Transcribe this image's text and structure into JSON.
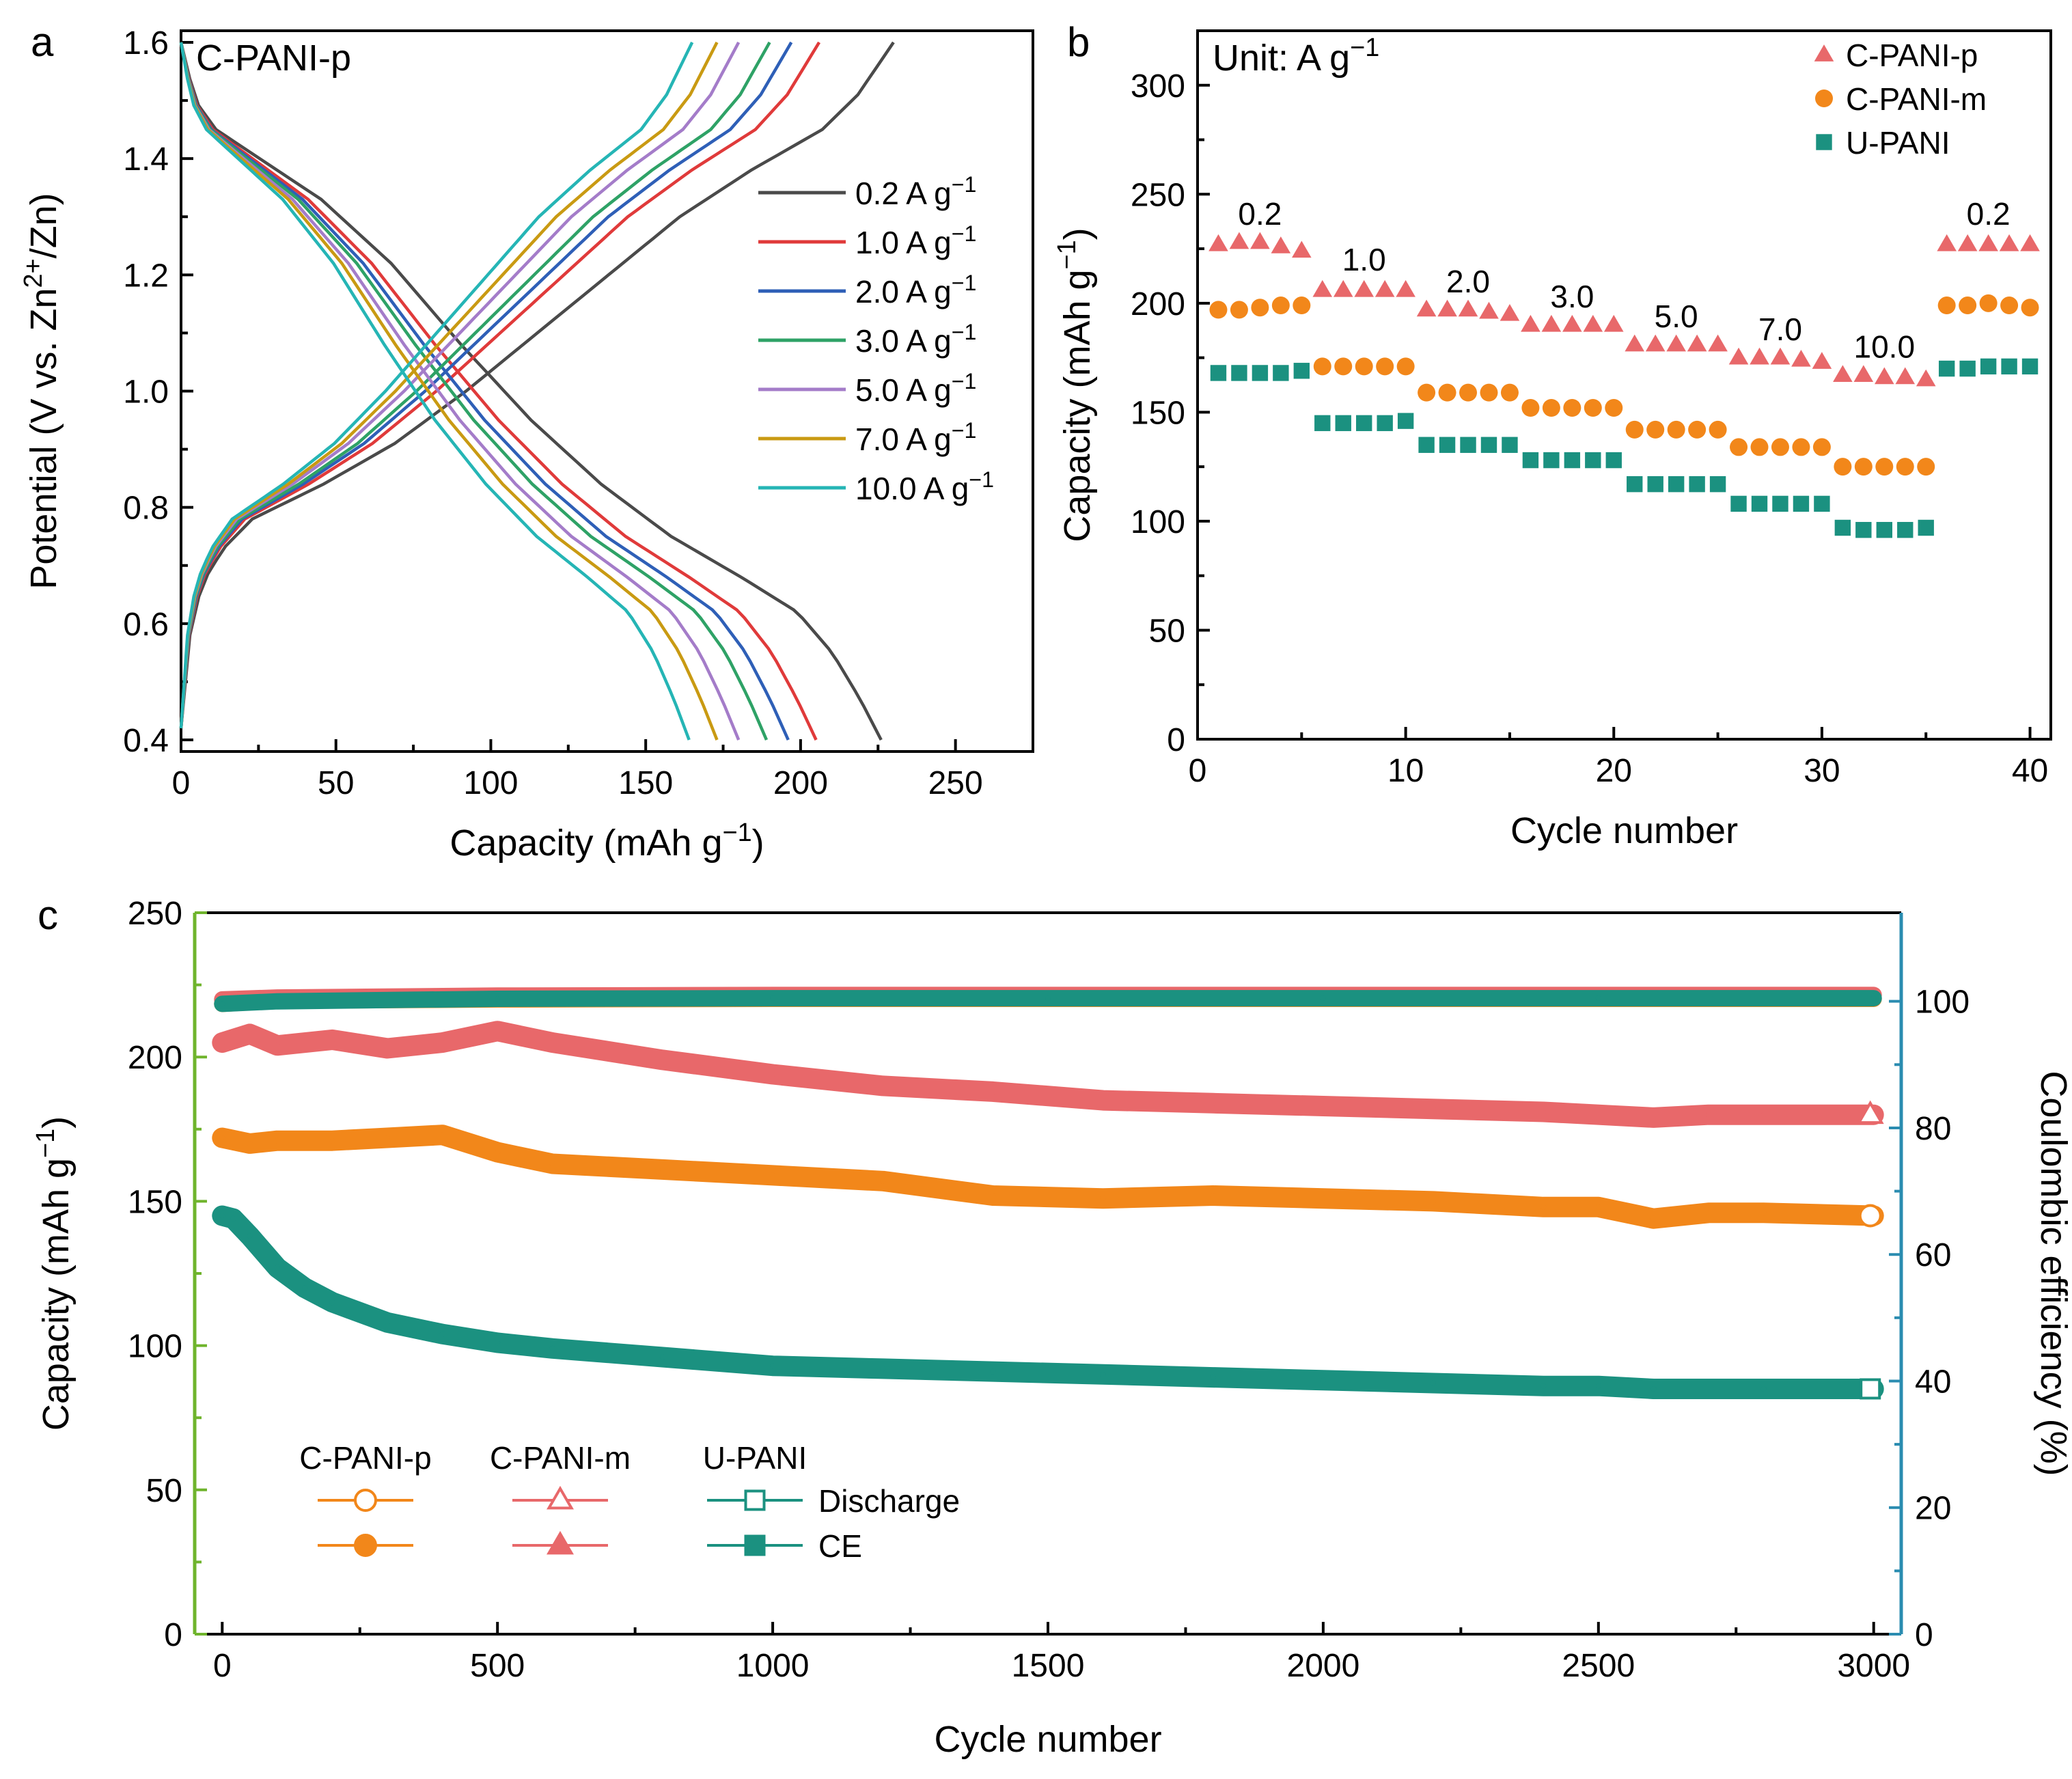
{
  "colors": {
    "a": [
      "#4a4a4a",
      "#e03a3a",
      "#2e5fb7",
      "#2ea266",
      "#a47cc9",
      "#c99a12",
      "#25b5b5"
    ],
    "p": "#e8686a",
    "m": "#f2871a",
    "u": "#1b9180",
    "green": "#6fb42c",
    "blue": "#2a8cb0"
  },
  "chart_data": [
    {
      "id": "a",
      "panel_label": "a",
      "type": "line",
      "title": "C-PANI-p",
      "xlabel": "Capacity (mAh g",
      "xlabel_sup": "−1",
      "xlabel_end": ")",
      "ylabel": "Potential (V vs. Zn",
      "ylabel_sup": "2+",
      "ylabel_end": "/Zn)",
      "xlim": [
        0,
        275
      ],
      "ylim": [
        0.38,
        1.62
      ],
      "xticks": [
        0,
        50,
        100,
        150,
        200,
        250
      ],
      "xtick_labels": [
        "0",
        "50",
        "100",
        "150",
        "200",
        "250"
      ],
      "yticks": [
        0.4,
        0.6,
        0.8,
        1.0,
        1.2,
        1.4,
        1.6
      ],
      "ytick_labels": [
        "0.4",
        "0.6",
        "0.8",
        "1.0",
        "1.2",
        "1.4",
        "1.6"
      ],
      "legend_position": "center-right",
      "legend_unit": "A g",
      "legend_unit_sup": "−1",
      "series": [
        {
          "name": "0.2",
          "discharge_capacity": 226,
          "charge_capacity": 230
        },
        {
          "name": "1.0",
          "discharge_capacity": 205,
          "charge_capacity": 206
        },
        {
          "name": "2.0",
          "discharge_capacity": 196,
          "charge_capacity": 197
        },
        {
          "name": "3.0",
          "discharge_capacity": 189,
          "charge_capacity": 190
        },
        {
          "name": "5.0",
          "discharge_capacity": 180,
          "charge_capacity": 180
        },
        {
          "name": "7.0",
          "discharge_capacity": 173,
          "charge_capacity": 173
        },
        {
          "name": "10.0",
          "discharge_capacity": 164,
          "charge_capacity": 165
        }
      ],
      "discharge_shape": {
        "fraction": [
          0,
          0.02,
          0.05,
          0.1,
          0.2,
          0.3,
          0.4,
          0.5,
          0.6,
          0.7,
          0.8,
          0.88,
          0.93,
          0.97,
          1.0
        ],
        "voltage": [
          1.6,
          1.5,
          1.45,
          1.41,
          1.33,
          1.22,
          1.08,
          0.95,
          0.84,
          0.75,
          0.68,
          0.62,
          0.55,
          0.47,
          0.4
        ]
      },
      "charge_shape": {
        "fraction": [
          0,
          0.005,
          0.015,
          0.03,
          0.06,
          0.1,
          0.2,
          0.3,
          0.4,
          0.5,
          0.6,
          0.7,
          0.8,
          0.9,
          0.95,
          1.0
        ],
        "voltage": [
          0.42,
          0.52,
          0.6,
          0.67,
          0.73,
          0.78,
          0.84,
          0.91,
          1.0,
          1.1,
          1.2,
          1.3,
          1.38,
          1.45,
          1.51,
          1.6
        ]
      }
    },
    {
      "id": "b",
      "panel_label": "b",
      "type": "scatter",
      "unit_note": "Unit: A g",
      "unit_note_sup": "−1",
      "xlabel": "Cycle number",
      "ylabel": "Capacity (mAh g",
      "ylabel_sup": "−1",
      "ylabel_end": ")",
      "xlim": [
        0,
        41
      ],
      "ylim": [
        0,
        325
      ],
      "xticks": [
        0,
        10,
        20,
        30,
        40
      ],
      "xtick_labels": [
        "0",
        "10",
        "20",
        "30",
        "40"
      ],
      "yticks": [
        0,
        50,
        100,
        150,
        200,
        250,
        300
      ],
      "ytick_labels": [
        "0",
        "50",
        "100",
        "150",
        "200",
        "250",
        "300"
      ],
      "legend_position": "top-right",
      "rate_labels": [
        {
          "label": "0.2",
          "x": 3,
          "y": 236
        },
        {
          "label": "1.0",
          "x": 8,
          "y": 215
        },
        {
          "label": "2.0",
          "x": 13,
          "y": 205
        },
        {
          "label": "3.0",
          "x": 18,
          "y": 198
        },
        {
          "label": "5.0",
          "x": 23,
          "y": 189
        },
        {
          "label": "7.0",
          "x": 28,
          "y": 183
        },
        {
          "label": "10.0",
          "x": 33,
          "y": 175
        },
        {
          "label": "0.2",
          "x": 38,
          "y": 236
        }
      ],
      "x": [
        1,
        2,
        3,
        4,
        5,
        6,
        7,
        8,
        9,
        10,
        11,
        12,
        13,
        14,
        15,
        16,
        17,
        18,
        19,
        20,
        21,
        22,
        23,
        24,
        25,
        26,
        27,
        28,
        29,
        30,
        31,
        32,
        33,
        34,
        35,
        36,
        37,
        38,
        39,
        40
      ],
      "series": [
        {
          "name": "C-PANI-p",
          "marker": "triangle",
          "values": [
            227,
            228,
            228,
            226,
            224,
            206,
            206,
            206,
            206,
            206,
            197,
            197,
            197,
            196,
            195,
            190,
            190,
            190,
            190,
            190,
            181,
            181,
            181,
            181,
            181,
            175,
            175,
            175,
            174,
            173,
            167,
            167,
            166,
            166,
            165,
            227,
            227,
            227,
            227,
            227
          ]
        },
        {
          "name": "C-PANI-m",
          "marker": "circle",
          "values": [
            197,
            197,
            198,
            199,
            199,
            171,
            171,
            171,
            171,
            171,
            159,
            159,
            159,
            159,
            159,
            152,
            152,
            152,
            152,
            152,
            142,
            142,
            142,
            142,
            142,
            134,
            134,
            134,
            134,
            134,
            125,
            125,
            125,
            125,
            125,
            199,
            199,
            200,
            199,
            198
          ]
        },
        {
          "name": "U-PANI",
          "marker": "square",
          "values": [
            168,
            168,
            168,
            168,
            169,
            145,
            145,
            145,
            145,
            146,
            135,
            135,
            135,
            135,
            135,
            128,
            128,
            128,
            128,
            128,
            117,
            117,
            117,
            117,
            117,
            108,
            108,
            108,
            108,
            108,
            97,
            96,
            96,
            96,
            97,
            170,
            170,
            171,
            171,
            171
          ]
        }
      ]
    },
    {
      "id": "c",
      "panel_label": "c",
      "type": "scatter",
      "xlabel": "Cycle number",
      "ylabel_left": "Capacity (mAh g",
      "ylabel_left_sup": "−1",
      "ylabel_left_end": ")",
      "ylabel_right": "Coulombic efficiency (%)",
      "xlim": [
        -50,
        3050
      ],
      "ylim_left": [
        0,
        250
      ],
      "ylim_right": [
        0,
        114
      ],
      "xticks": [
        0,
        500,
        1000,
        1500,
        2000,
        2500,
        3000
      ],
      "xtick_labels": [
        "0",
        "500",
        "1000",
        "1500",
        "2000",
        "2500",
        "3000"
      ],
      "yticks_left": [
        0,
        50,
        100,
        150,
        200,
        250
      ],
      "ytick_left_labels": [
        "0",
        "50",
        "100",
        "150",
        "200",
        "250"
      ],
      "yticks_right": [
        0,
        20,
        40,
        60,
        80,
        100
      ],
      "ytick_right_labels": [
        "0",
        "20",
        "40",
        "60",
        "80",
        "100"
      ],
      "legend_position": "bottom-left",
      "legend": {
        "headers": [
          "C-PANI-p",
          "C-PANI-m",
          "U-PANI"
        ],
        "rows": [
          "Discharge",
          "CE"
        ]
      },
      "series": [
        {
          "name": "C-PANI-p Discharge",
          "axis": "left",
          "x": [
            0,
            50,
            100,
            200,
            300,
            400,
            500,
            600,
            800,
            1000,
            1200,
            1400,
            1600,
            1800,
            2000,
            2200,
            2400,
            2500,
            2600,
            2700,
            2800,
            3000
          ],
          "values": [
            172,
            170,
            171,
            171,
            172,
            173,
            167,
            163,
            161,
            159,
            157,
            152,
            151,
            152,
            151,
            150,
            148,
            148,
            144,
            146,
            146,
            145
          ]
        },
        {
          "name": "C-PANI-m Discharge",
          "axis": "left",
          "x": [
            0,
            50,
            100,
            200,
            300,
            400,
            500,
            600,
            800,
            1000,
            1200,
            1400,
            1600,
            1800,
            2000,
            2200,
            2400,
            2500,
            2600,
            2700,
            2800,
            3000
          ],
          "values": [
            205,
            208,
            204,
            206,
            203,
            205,
            209,
            205,
            199,
            194,
            190,
            188,
            185,
            184,
            183,
            182,
            181,
            180,
            179,
            180,
            180,
            180
          ]
        },
        {
          "name": "U-PANI Discharge",
          "axis": "left",
          "x": [
            0,
            20,
            50,
            100,
            150,
            200,
            300,
            400,
            500,
            600,
            800,
            1000,
            1200,
            1400,
            1600,
            1800,
            2000,
            2200,
            2400,
            2500,
            2600,
            2800,
            3000
          ],
          "values": [
            145,
            144,
            138,
            127,
            120,
            115,
            108,
            104,
            101,
            99,
            96,
            93,
            92,
            91,
            90,
            89,
            88,
            87,
            86,
            86,
            85,
            85,
            85
          ]
        },
        {
          "name": "C-PANI-p CE",
          "axis": "right",
          "x": [
            0,
            100,
            500,
            1000,
            1500,
            2000,
            2500,
            3000
          ],
          "values": [
            99.6,
            100.1,
            100.3,
            100.4,
            100.4,
            100.4,
            100.4,
            100.4
          ]
        },
        {
          "name": "C-PANI-m CE",
          "axis": "right",
          "x": [
            0,
            100,
            500,
            1000,
            1500,
            2000,
            2500,
            3000
          ],
          "values": [
            100.3,
            100.6,
            100.9,
            101.0,
            101.0,
            101.0,
            101.0,
            101.0
          ]
        },
        {
          "name": "U-PANI CE",
          "axis": "right",
          "x": [
            0,
            100,
            500,
            1000,
            1500,
            2000,
            2500,
            3000
          ],
          "values": [
            99.6,
            100.0,
            100.4,
            100.5,
            100.5,
            100.5,
            100.5,
            100.5
          ]
        }
      ]
    }
  ]
}
